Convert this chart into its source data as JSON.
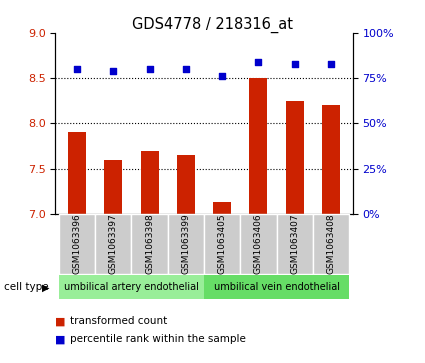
{
  "title": "GDS4778 / 218316_at",
  "samples": [
    "GSM1063396",
    "GSM1063397",
    "GSM1063398",
    "GSM1063399",
    "GSM1063405",
    "GSM1063406",
    "GSM1063407",
    "GSM1063408"
  ],
  "bar_values": [
    7.9,
    7.6,
    7.7,
    7.65,
    7.13,
    8.5,
    8.25,
    8.2
  ],
  "scatter_values": [
    80,
    79,
    80,
    80,
    76,
    84,
    83,
    83
  ],
  "ylim_left": [
    7,
    9
  ],
  "ylim_right": [
    0,
    100
  ],
  "yticks_left": [
    7,
    7.5,
    8,
    8.5,
    9
  ],
  "yticks_right": [
    0,
    25,
    50,
    75,
    100
  ],
  "ytick_labels_right": [
    "0%",
    "25%",
    "50%",
    "75%",
    "100%"
  ],
  "bar_color": "#cc2200",
  "scatter_color": "#0000cc",
  "bar_width": 0.5,
  "group1_label": "umbilical artery endothelial",
  "group2_label": "umbilical vein endothelial",
  "group1_indices": [
    0,
    1,
    2,
    3
  ],
  "group2_indices": [
    4,
    5,
    6,
    7
  ],
  "cell_type_label": "cell type",
  "legend_bar": "transformed count",
  "legend_scatter": "percentile rank within the sample",
  "bg_color": "#ffffff",
  "sample_bg_color": "#cccccc",
  "group1_bg_color": "#99ee99",
  "group2_bg_color": "#66dd66",
  "dotted_values": [
    7.5,
    8.0,
    8.5
  ]
}
